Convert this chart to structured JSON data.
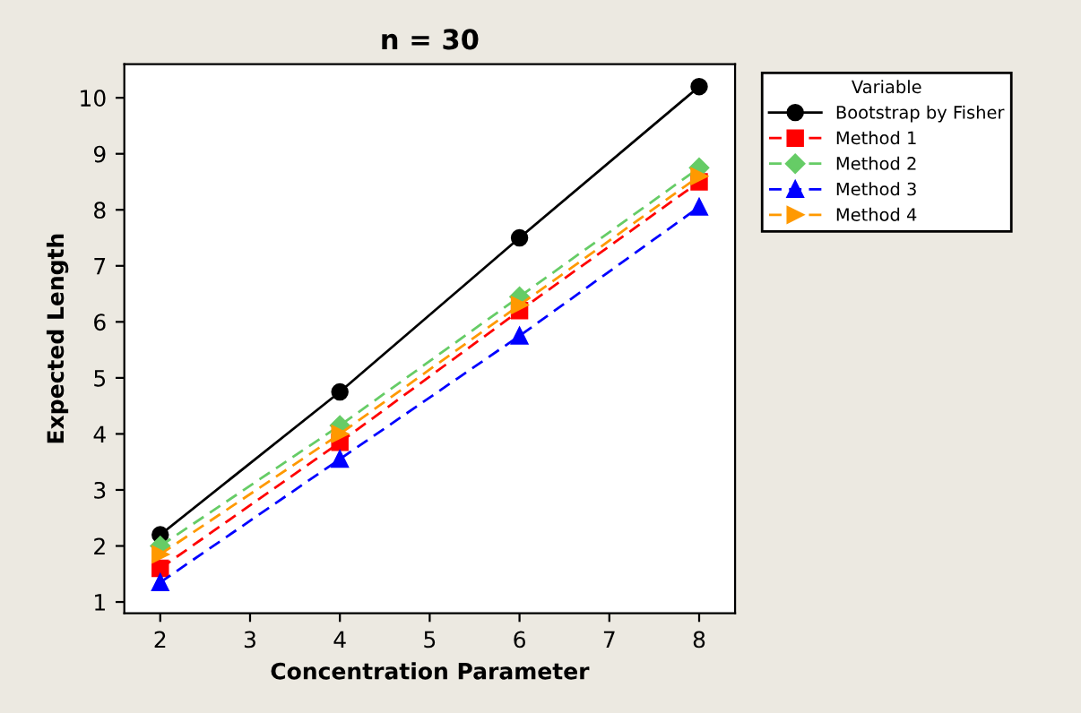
{
  "chart_data": {
    "type": "line",
    "title": "n = 30",
    "xlabel": "Concentration Parameter",
    "ylabel": "Expected Length",
    "legend_title": "Variable",
    "x": [
      2,
      4,
      6,
      8
    ],
    "series": [
      {
        "name": "Bootstrap by Fisher",
        "color": "#000000",
        "marker": "circle",
        "line_style": "solid",
        "values": [
          2.2,
          4.75,
          7.5,
          10.2
        ]
      },
      {
        "name": "Method 1",
        "color": "#ff0000",
        "marker": "square",
        "line_style": "dashed",
        "values": [
          1.6,
          3.85,
          6.2,
          8.5
        ]
      },
      {
        "name": "Method 2",
        "color": "#66cc66",
        "marker": "diamond",
        "line_style": "dashed",
        "values": [
          2.0,
          4.15,
          6.45,
          8.75
        ]
      },
      {
        "name": "Method 3",
        "color": "#0000ff",
        "marker": "triangle",
        "line_style": "dashed",
        "values": [
          1.35,
          3.55,
          5.75,
          8.05
        ]
      },
      {
        "name": "Method 4",
        "color": "#ff9900",
        "marker": "triangle_right",
        "line_style": "dashed",
        "values": [
          1.85,
          4.0,
          6.3,
          8.6
        ]
      }
    ],
    "xlim": [
      1.6,
      8.4
    ],
    "ylim": [
      0.8,
      10.6
    ],
    "xticks": [
      2,
      3,
      4,
      5,
      6,
      7,
      8
    ],
    "yticks": [
      1,
      2,
      3,
      4,
      5,
      6,
      7,
      8,
      9,
      10
    ],
    "grid": false,
    "legend": "top right"
  }
}
